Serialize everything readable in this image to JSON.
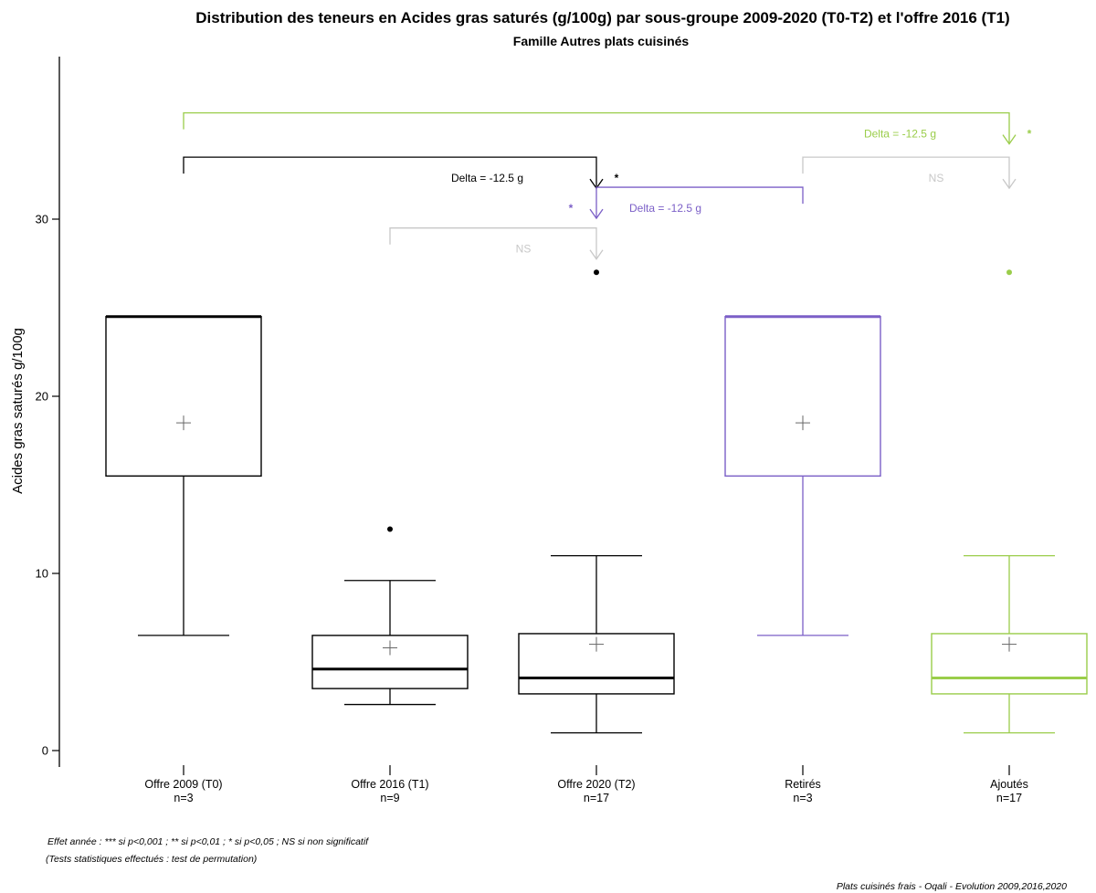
{
  "chart_data": {
    "type": "boxplot",
    "title": "Distribution des teneurs en Acides gras saturés (g/100g) par sous-groupe 2009-2020 (T0-T2) et l'offre 2016 (T1)",
    "subtitle": "Famille Autres plats cuisinés",
    "ylabel": "Acides gras saturés g/100g",
    "ylim": [
      0,
      38
    ],
    "yticks": [
      0,
      10,
      20,
      30
    ],
    "categories": [
      {
        "label": "Offre 2009 (T0)",
        "n": "n=3",
        "color": "#000000"
      },
      {
        "label": "Offre 2016 (T1)",
        "n": "n=9",
        "color": "#000000"
      },
      {
        "label": "Offre 2020 (T2)",
        "n": "n=17",
        "color": "#000000"
      },
      {
        "label": "Retirés",
        "n": "n=3",
        "color": "#7b5fc7"
      },
      {
        "label": "Ajoutés",
        "n": "n=17",
        "color": "#9acd4a"
      }
    ],
    "boxes": [
      {
        "min": 6.5,
        "q1": 15.5,
        "median": 24.5,
        "q3": 24.5,
        "max": 24.5,
        "mean": 18.5,
        "outliers": []
      },
      {
        "min": 2.6,
        "q1": 3.5,
        "median": 4.6,
        "q3": 6.5,
        "max": 9.6,
        "mean": 5.8,
        "outliers": [
          12.5
        ]
      },
      {
        "min": 1.0,
        "q1": 3.2,
        "median": 4.1,
        "q3": 6.6,
        "max": 11.0,
        "mean": 6.0,
        "outliers": [
          27.0
        ]
      },
      {
        "min": 6.5,
        "q1": 15.5,
        "median": 24.5,
        "q3": 24.5,
        "max": 24.5,
        "mean": 18.5,
        "outliers": []
      },
      {
        "min": 1.0,
        "q1": 3.2,
        "median": 4.1,
        "q3": 6.6,
        "max": 11.0,
        "mean": 6.0,
        "outliers": [
          27.0
        ]
      }
    ],
    "comparisons": [
      {
        "from": 0,
        "to": 2,
        "y": 33.5,
        "label": "Delta = -12.5 g",
        "sig": "*",
        "color": "#000000"
      },
      {
        "from": 1,
        "to": 2,
        "y": 29.5,
        "label": "NS",
        "sig": "",
        "color": "#c8c8c8"
      },
      {
        "from": 3,
        "to": 2,
        "y": 31.8,
        "label": "Delta = -12.5 g",
        "sig": "*",
        "color": "#7b5fc7"
      },
      {
        "from": 0,
        "to": 4,
        "y": 36.0,
        "label": "Delta = -12.5 g",
        "sig": "*",
        "color": "#9acd4a"
      },
      {
        "from": 3,
        "to": 4,
        "y": 33.5,
        "label": "NS",
        "sig": "",
        "color": "#c8c8c8"
      }
    ]
  },
  "notes": {
    "line1": "Effet année : *** si p<0,001 ; ** si p<0,01 ; * si p<0,05 ; NS si non significatif",
    "line2": "(Tests statistiques effectués : test de permutation)",
    "source": "Plats cuisinés frais - Oqali - Evolution 2009,2016,2020"
  }
}
